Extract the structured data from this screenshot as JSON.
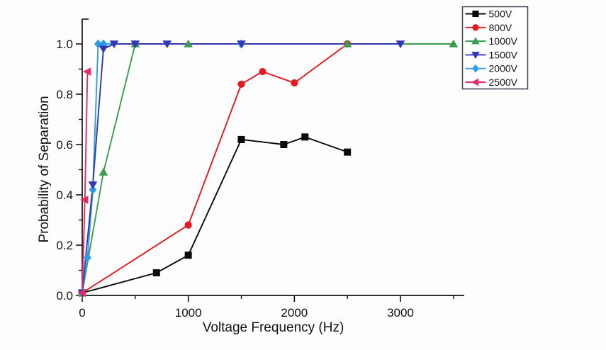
{
  "chart_data": {
    "type": "line",
    "title": "",
    "xlabel": "Voltage Frequency (Hz)",
    "ylabel": "Probability of Separation",
    "xlim": [
      0,
      3600
    ],
    "ylim": [
      0,
      1.1
    ],
    "grid": false,
    "legend_position": "top-right",
    "x_major_ticks": [
      0,
      1000,
      2000,
      3000
    ],
    "x_tick_labels": [
      "0",
      "1000",
      "2000",
      "3000"
    ],
    "x_minor_ticks": [
      500,
      1500,
      2500,
      3500
    ],
    "y_major_ticks": [
      0.0,
      0.2,
      0.4,
      0.6,
      0.8,
      1.0
    ],
    "y_tick_labels": [
      "0.0",
      "0.2",
      "0.4",
      "0.6",
      "0.8",
      "1.0"
    ],
    "y_minor_ticks": [
      0.1,
      0.3,
      0.5,
      0.7,
      0.9,
      1.1
    ],
    "axis_color": "#111111",
    "series": [
      {
        "name": "500V",
        "color": "#0a0a0a",
        "marker": "square",
        "points": [
          [
            0,
            0.01
          ],
          [
            700,
            0.09
          ],
          [
            1000,
            0.16
          ],
          [
            1500,
            0.62
          ],
          [
            1900,
            0.6
          ],
          [
            2100,
            0.63
          ],
          [
            2500,
            0.57
          ]
        ]
      },
      {
        "name": "800V",
        "color": "#e3191f",
        "marker": "circle",
        "points": [
          [
            0,
            0.01
          ],
          [
            1000,
            0.28
          ],
          [
            1500,
            0.84
          ],
          [
            1700,
            0.89
          ],
          [
            2000,
            0.845
          ],
          [
            2500,
            1.0
          ]
        ]
      },
      {
        "name": "1000V",
        "color": "#3d9b52",
        "marker": "triangle-up",
        "points": [
          [
            0,
            0.01
          ],
          [
            200,
            0.49
          ],
          [
            500,
            1.0
          ],
          [
            1000,
            1.0
          ],
          [
            2500,
            1.0
          ],
          [
            3500,
            1.0
          ]
        ]
      },
      {
        "name": "1500V",
        "color": "#3238b4",
        "marker": "triangle-down",
        "points": [
          [
            0,
            0.01
          ],
          [
            100,
            0.44
          ],
          [
            200,
            0.98
          ],
          [
            300,
            1.0
          ],
          [
            500,
            1.0
          ],
          [
            800,
            1.0
          ],
          [
            1500,
            1.0
          ],
          [
            3000,
            1.0
          ]
        ]
      },
      {
        "name": "2000V",
        "color": "#2e9ce6",
        "marker": "diamond",
        "points": [
          [
            0,
            0.01
          ],
          [
            50,
            0.15
          ],
          [
            100,
            0.42
          ],
          [
            150,
            1.0
          ],
          [
            200,
            1.0
          ],
          [
            1500,
            1.0
          ]
        ]
      },
      {
        "name": "2500V",
        "color": "#e42a68",
        "marker": "triangle-left",
        "points": [
          [
            0,
            0.01
          ],
          [
            25,
            0.38
          ],
          [
            50,
            0.89
          ]
        ]
      }
    ]
  }
}
